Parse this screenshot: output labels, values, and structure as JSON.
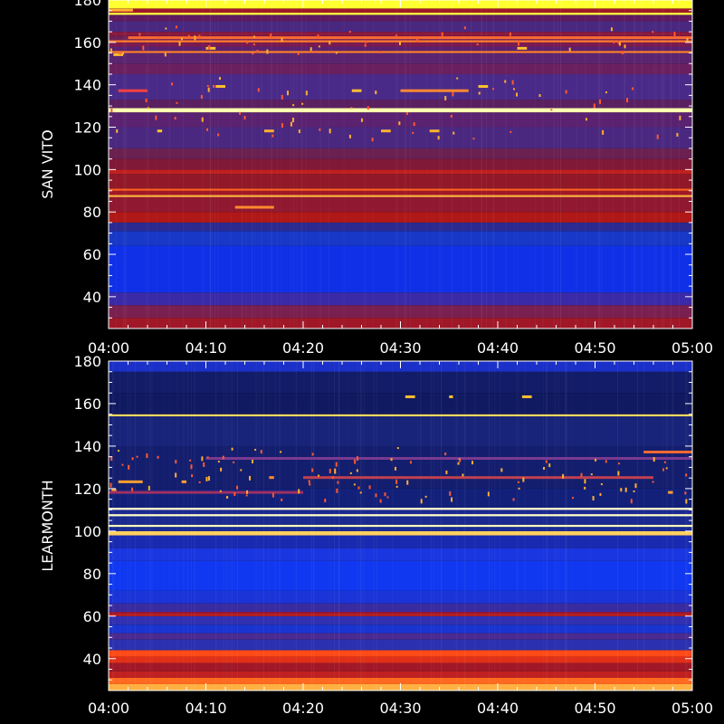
{
  "chart_data": [
    {
      "type": "heatmap",
      "station": "SAN VITO",
      "ylabel": "SAN VITO",
      "xlabel": "",
      "title": "",
      "x_ticks": [
        "04:00",
        "04:10",
        "04:20",
        "04:30",
        "04:40",
        "04:50",
        "05:00"
      ],
      "y_ticks": [
        40,
        60,
        80,
        100,
        120,
        140,
        160,
        180
      ],
      "xlim": [
        "04:00",
        "05:00"
      ],
      "ylim": [
        25,
        180
      ],
      "colormap": [
        "#2a1f8c",
        "#1030ff",
        "#5a2aa8",
        "#8e1a38",
        "#c01818",
        "#ff5a10",
        "#ffd838",
        "#ffff9a"
      ],
      "bands": [
        {
          "y0": 25,
          "y1": 30,
          "color": "#a01828"
        },
        {
          "y0": 30,
          "y1": 36,
          "color": "#7a2050"
        },
        {
          "y0": 36,
          "y1": 42,
          "color": "#3a2aa8"
        },
        {
          "y0": 42,
          "y1": 64,
          "color": "#1030e8"
        },
        {
          "y0": 64,
          "y1": 71,
          "color": "#1838c8"
        },
        {
          "y0": 71,
          "y1": 75,
          "color": "#2a2a90"
        },
        {
          "y0": 75,
          "y1": 80,
          "color": "#b01818"
        },
        {
          "y0": 80,
          "y1": 87,
          "color": "#901830"
        },
        {
          "y0": 87,
          "y1": 88,
          "color": "#ffb040"
        },
        {
          "y0": 88,
          "y1": 90,
          "color": "#a01828"
        },
        {
          "y0": 90,
          "y1": 91,
          "color": "#ff6020"
        },
        {
          "y0": 91,
          "y1": 98,
          "color": "#901828"
        },
        {
          "y0": 98,
          "y1": 100,
          "color": "#c02020"
        },
        {
          "y0": 100,
          "y1": 105,
          "color": "#801838"
        },
        {
          "y0": 105,
          "y1": 110,
          "color": "#6a2050"
        },
        {
          "y0": 110,
          "y1": 120,
          "color": "#4a2880"
        },
        {
          "y0": 120,
          "y1": 127,
          "color": "#5a2270"
        },
        {
          "y0": 127,
          "y1": 129,
          "color": "#ffffb0"
        },
        {
          "y0": 129,
          "y1": 133,
          "color": "#5a2060"
        },
        {
          "y0": 133,
          "y1": 145,
          "color": "#4a2a88"
        },
        {
          "y0": 145,
          "y1": 150,
          "color": "#6a2060"
        },
        {
          "y0": 150,
          "y1": 155,
          "color": "#5a2470"
        },
        {
          "y0": 155,
          "y1": 156,
          "color": "#ff8030"
        },
        {
          "y0": 156,
          "y1": 158,
          "color": "#5a2070"
        },
        {
          "y0": 158,
          "y1": 160,
          "color": "#7a1a50"
        },
        {
          "y0": 160,
          "y1": 161,
          "color": "#ff7a30"
        },
        {
          "y0": 161,
          "y1": 163,
          "color": "#6a2058"
        },
        {
          "y0": 163,
          "y1": 165,
          "color": "#8a1a40"
        },
        {
          "y0": 165,
          "y1": 170,
          "color": "#4a2880"
        },
        {
          "y0": 170,
          "y1": 173,
          "color": "#601a60"
        },
        {
          "y0": 173,
          "y1": 174,
          "color": "#ffff40"
        },
        {
          "y0": 174,
          "y1": 176,
          "color": "#a01828"
        },
        {
          "y0": 176,
          "y1": 180,
          "color": "#ffff30"
        }
      ],
      "bursts": [
        {
          "t0": 1,
          "t1": 4,
          "y": 137,
          "color": "#ff4040"
        },
        {
          "t0": 25,
          "t1": 26,
          "y": 137,
          "color": "#ffc030"
        },
        {
          "t0": 30,
          "t1": 37,
          "y": 137,
          "color": "#ff8a30"
        },
        {
          "t0": 2,
          "t1": 60,
          "y": 162,
          "color": "#ff6a30"
        },
        {
          "t0": 5,
          "t1": 5.5,
          "y": 118,
          "color": "#ffc030"
        },
        {
          "t0": 16,
          "t1": 17,
          "y": 118,
          "color": "#ffb030"
        },
        {
          "t0": 28,
          "t1": 29,
          "y": 118,
          "color": "#ffb030"
        },
        {
          "t0": 33,
          "t1": 34,
          "y": 118,
          "color": "#ffb030"
        },
        {
          "t0": 13,
          "t1": 17,
          "y": 82,
          "color": "#ff8a30"
        },
        {
          "t0": 11,
          "t1": 12,
          "y": 139,
          "color": "#ffc030"
        },
        {
          "t0": 38,
          "t1": 39,
          "y": 139,
          "color": "#ffc030"
        },
        {
          "t0": 0.5,
          "t1": 1.5,
          "y": 154,
          "color": "#ffc030"
        },
        {
          "t0": 10,
          "t1": 11,
          "y": 157,
          "color": "#ffc030"
        },
        {
          "t0": 42,
          "t1": 43,
          "y": 157,
          "color": "#ffc030"
        },
        {
          "t0": 0,
          "t1": 2.5,
          "y": 175,
          "color": "#ffb030"
        }
      ]
    },
    {
      "type": "heatmap",
      "station": "LEARMONTH",
      "ylabel": "LEARMONTH",
      "xlabel": "",
      "title": "",
      "x_ticks": [
        "04:00",
        "04:10",
        "04:20",
        "04:30",
        "04:40",
        "04:50",
        "05:00"
      ],
      "y_ticks": [
        40,
        60,
        80,
        100,
        120,
        140,
        160,
        180
      ],
      "xlim": [
        "04:00",
        "05:00"
      ],
      "ylim": [
        25,
        180
      ],
      "colormap": [
        "#2a1f8c",
        "#1030ff",
        "#5a2aa8",
        "#8e1a38",
        "#c01818",
        "#ff5a10",
        "#ffd838",
        "#ffff9a"
      ],
      "bands": [
        {
          "y0": 25,
          "y1": 28,
          "color": "#ffb040"
        },
        {
          "y0": 28,
          "y1": 31,
          "color": "#ff6a20"
        },
        {
          "y0": 31,
          "y1": 34,
          "color": "#c02020"
        },
        {
          "y0": 34,
          "y1": 38,
          "color": "#a01828"
        },
        {
          "y0": 38,
          "y1": 41,
          "color": "#e03018"
        },
        {
          "y0": 41,
          "y1": 44,
          "color": "#ff4a18"
        },
        {
          "y0": 44,
          "y1": 49,
          "color": "#2a30b0"
        },
        {
          "y0": 49,
          "y1": 52,
          "color": "#4a2a90"
        },
        {
          "y0": 52,
          "y1": 56,
          "color": "#1a34d0"
        },
        {
          "y0": 56,
          "y1": 60,
          "color": "#3030b0"
        },
        {
          "y0": 60,
          "y1": 61,
          "color": "#c02020"
        },
        {
          "y0": 61,
          "y1": 62,
          "color": "#a01830"
        },
        {
          "y0": 62,
          "y1": 66,
          "color": "#3a2aa0"
        },
        {
          "y0": 66,
          "y1": 72,
          "color": "#1a34d8"
        },
        {
          "y0": 72,
          "y1": 86,
          "color": "#1038f0"
        },
        {
          "y0": 86,
          "y1": 92,
          "color": "#1a36e0"
        },
        {
          "y0": 92,
          "y1": 98,
          "color": "#1a2ab0"
        },
        {
          "y0": 98,
          "y1": 100,
          "color": "#ffd060"
        },
        {
          "y0": 100,
          "y1": 102,
          "color": "#1a2a9a"
        },
        {
          "y0": 102,
          "y1": 103,
          "color": "#ffffc0"
        },
        {
          "y0": 103,
          "y1": 107,
          "color": "#1a2a90"
        },
        {
          "y0": 107,
          "y1": 108,
          "color": "#ffffd0"
        },
        {
          "y0": 108,
          "y1": 110,
          "color": "#1a2890"
        },
        {
          "y0": 110,
          "y1": 111,
          "color": "#ffffd0"
        },
        {
          "y0": 111,
          "y1": 120,
          "color": "#12207a"
        },
        {
          "y0": 120,
          "y1": 140,
          "color": "#141e6e"
        },
        {
          "y0": 140,
          "y1": 154,
          "color": "#18247a"
        },
        {
          "y0": 154,
          "y1": 155,
          "color": "#ffd860"
        },
        {
          "y0": 155,
          "y1": 165,
          "color": "#101a60"
        },
        {
          "y0": 165,
          "y1": 175,
          "color": "#121c68"
        },
        {
          "y0": 175,
          "y1": 180,
          "color": "#1a30c8"
        }
      ],
      "bursts": [
        {
          "t0": 55,
          "t1": 60,
          "y": 137,
          "color": "#ff6a30"
        },
        {
          "t0": 30.5,
          "t1": 31.5,
          "y": 163,
          "color": "#ffc030"
        },
        {
          "t0": 42.5,
          "t1": 43.5,
          "y": 163,
          "color": "#ffc030"
        },
        {
          "t0": 35,
          "t1": 35.4,
          "y": 163,
          "color": "#ffc030"
        },
        {
          "t0": 1,
          "t1": 3.5,
          "y": 123,
          "color": "#ffa030"
        },
        {
          "t0": 0.3,
          "t1": 0.8,
          "y": 119,
          "color": "#ffa030"
        },
        {
          "t0": 7.5,
          "t1": 8,
          "y": 123,
          "color": "#ffa030"
        },
        {
          "t0": 16.5,
          "t1": 17,
          "y": 125,
          "color": "#ff8a30"
        },
        {
          "t0": 57.5,
          "t1": 58,
          "y": 118,
          "color": "#ffa030"
        },
        {
          "t0": 20,
          "t1": 56,
          "y": 125,
          "color": "#c04050"
        },
        {
          "t0": 10,
          "t1": 60,
          "y": 134,
          "color": "#7a3a90"
        },
        {
          "t0": 0,
          "t1": 20,
          "y": 118,
          "color": "#a03060"
        }
      ]
    }
  ]
}
